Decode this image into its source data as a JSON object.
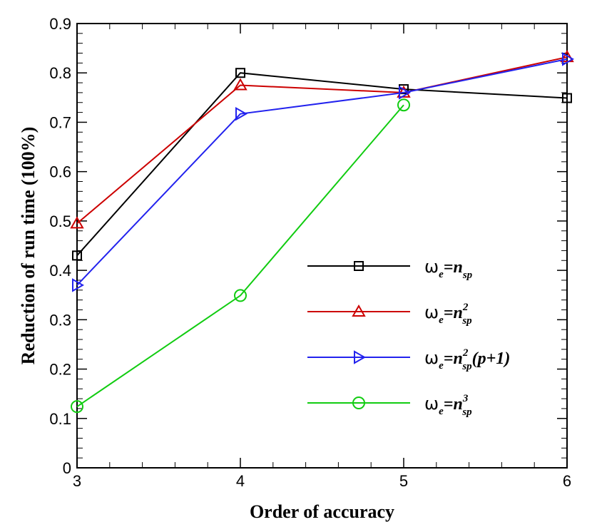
{
  "chart_data": {
    "type": "line",
    "xlabel": "Order of accuracy",
    "ylabel": "Reduction of run time (100%)",
    "xlim": [
      3,
      6
    ],
    "ylim": [
      0,
      0.9
    ],
    "x": [
      3,
      4,
      5,
      6
    ],
    "x_ticks": [
      "3",
      "4",
      "5",
      "6"
    ],
    "y_ticks": [
      "0",
      "0.1",
      "0.2",
      "0.3",
      "0.4",
      "0.5",
      "0.6",
      "0.7",
      "0.8",
      "0.9"
    ],
    "legend_position": "center-right",
    "series": [
      {
        "name": "ωe=nsp",
        "legend": {
          "omega": "ω",
          "sub_e": "e",
          "eq": "=n",
          "sub": "sp",
          "sup": "",
          "tail": ""
        },
        "color": "#000000",
        "marker": "square",
        "values": [
          0.43,
          0.8,
          0.767,
          0.749
        ]
      },
      {
        "name": "ωe=nsp^2",
        "legend": {
          "omega": "ω",
          "sub_e": "e",
          "eq": "=n",
          "sub": "sp",
          "sup": "2",
          "tail": ""
        },
        "color": "#cc0000",
        "marker": "triangle-up",
        "values": [
          0.495,
          0.775,
          0.76,
          0.832
        ]
      },
      {
        "name": "ωe=nsp^2(p+1)",
        "legend": {
          "omega": "ω",
          "sub_e": "e",
          "eq": "=n",
          "sub": "sp",
          "sup": "2",
          "tail": "(p+1)"
        },
        "color": "#2222ee",
        "marker": "triangle-right",
        "values": [
          0.37,
          0.717,
          0.76,
          0.828
        ]
      },
      {
        "name": "ωe=nsp^3",
        "legend": {
          "omega": "ω",
          "sub_e": "e",
          "eq": "=n",
          "sub": "sp",
          "sup": "3",
          "tail": ""
        },
        "color": "#11cc11",
        "marker": "circle",
        "values": [
          0.124,
          0.349,
          0.735,
          null
        ]
      }
    ]
  }
}
